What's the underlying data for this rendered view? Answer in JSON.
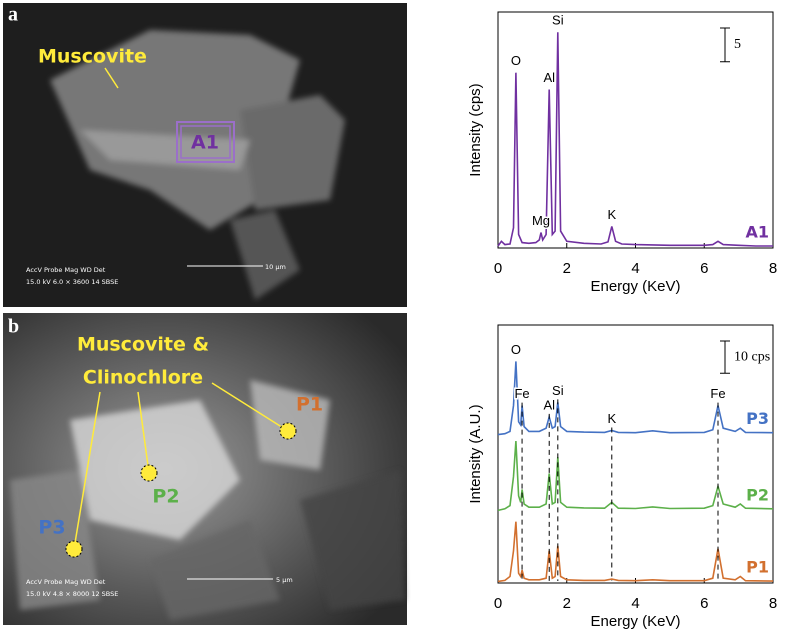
{
  "panels": [
    {
      "label": "a",
      "mineral": [
        "Muscovite"
      ],
      "points": [
        "A1"
      ],
      "info": {
        "header": "AccV   Probe    Mag    WD  Det",
        "values": "15.0 kV  6.0   × 3600   14  SBSE",
        "scale": "10 μm"
      }
    },
    {
      "label": "b",
      "mineral": [
        "Muscovite &",
        "Clinochlore"
      ],
      "points": [
        "P1",
        "P2",
        "P3"
      ],
      "info": {
        "header": "AccV   Probe    Mag    WD  Det",
        "values": "15.0 kV  4.8   × 8000   12  SBSE",
        "scale": "5 μm"
      }
    }
  ],
  "chart_data": [
    {
      "type": "line",
      "x_label": "Energy (KeV)",
      "y_label": "Intensity (cps)",
      "xlim": [
        0,
        8
      ],
      "xticks": [
        0,
        2,
        4,
        6,
        8
      ],
      "ylim": [
        0,
        35
      ],
      "scale_bar": {
        "value": 5,
        "label": "5"
      },
      "x": [
        0,
        0.1,
        0.2,
        0.35,
        0.45,
        0.52,
        0.6,
        0.7,
        0.9,
        1.1,
        1.2,
        1.25,
        1.3,
        1.4,
        1.49,
        1.58,
        1.66,
        1.74,
        1.82,
        2.0,
        2.5,
        3.0,
        3.2,
        3.31,
        3.42,
        3.6,
        4.0,
        5.0,
        6.0,
        6.25,
        6.4,
        6.55,
        7.0,
        7.5,
        8.0
      ],
      "series": [
        {
          "name": "A1",
          "color": "#7030a0",
          "values": [
            0.3,
            1,
            0.5,
            0.6,
            3,
            26,
            2,
            0.8,
            0.7,
            0.8,
            1.2,
            2.3,
            1.2,
            2,
            23.5,
            2,
            2.5,
            32,
            2.5,
            1,
            0.7,
            0.6,
            0.9,
            3.2,
            1,
            0.6,
            0.5,
            0.4,
            0.4,
            0.5,
            1,
            0.5,
            0.4,
            0.3,
            0.3
          ]
        }
      ],
      "annotations": [
        {
          "label": "O",
          "x": 0.52
        },
        {
          "label": "Mg",
          "x": 1.25
        },
        {
          "label": "Al",
          "x": 1.49
        },
        {
          "label": "Si",
          "x": 1.74
        },
        {
          "label": "K",
          "x": 3.31
        }
      ]
    },
    {
      "type": "line",
      "x_label": "Energy (KeV)",
      "y_label": "Intensity (A.U.)",
      "xlim": [
        0,
        8
      ],
      "xticks": [
        0,
        2,
        4,
        6,
        8
      ],
      "ylim": [
        0,
        80
      ],
      "scale_bar": {
        "value": 10,
        "label": "10 cps"
      },
      "x": [
        0,
        0.2,
        0.35,
        0.45,
        0.52,
        0.6,
        0.66,
        0.7,
        0.76,
        0.9,
        1.2,
        1.4,
        1.49,
        1.58,
        1.66,
        1.74,
        1.82,
        2.0,
        2.5,
        3.1,
        3.31,
        3.5,
        4.0,
        4.5,
        5.0,
        6.0,
        6.25,
        6.4,
        6.55,
        6.9,
        7.05,
        7.2,
        8.0
      ],
      "series": [
        {
          "name": "P3",
          "color": "#4472c4",
          "values": [
            46,
            46.3,
            47,
            55,
            68.7,
            50,
            49,
            55,
            48.5,
            47,
            47,
            48,
            51.5,
            48,
            48.5,
            56,
            48.5,
            47,
            46.8,
            46.7,
            47.3,
            46.7,
            46.6,
            47.2,
            46.6,
            46.7,
            47.5,
            55,
            48,
            47,
            48,
            46.7,
            46.6
          ]
        },
        {
          "name": "P2",
          "color": "#5cb04a",
          "values": [
            22.5,
            23,
            24,
            33,
            44,
            27,
            25,
            29,
            24.5,
            23.5,
            23.5,
            24.5,
            34,
            24.5,
            25,
            39,
            25,
            23.5,
            23.3,
            23.2,
            25,
            23.2,
            23.1,
            23.6,
            23.1,
            23.2,
            24,
            30,
            24.5,
            23.5,
            24.5,
            23.2,
            23
          ]
        },
        {
          "name": "P1",
          "color": "#d2702f",
          "values": [
            0.5,
            0.8,
            2,
            10,
            19,
            3,
            2,
            4,
            1.5,
            1,
            1,
            1.5,
            10,
            1.5,
            2,
            11.5,
            2,
            1,
            0.8,
            0.8,
            1.2,
            0.8,
            0.7,
            1,
            0.7,
            0.7,
            1.5,
            10.6,
            1.5,
            1,
            2,
            0.7,
            0.6
          ]
        }
      ],
      "annotations": [
        {
          "label": "O",
          "x": 0.52
        },
        {
          "label": "Fe",
          "x": 0.7,
          "line": true
        },
        {
          "label": "Al",
          "x": 1.49,
          "line": true
        },
        {
          "label": "Si",
          "x": 1.74,
          "line": true
        },
        {
          "label": "K",
          "x": 3.31,
          "line": true
        },
        {
          "label": "Fe",
          "x": 6.4,
          "line": true
        }
      ]
    }
  ]
}
